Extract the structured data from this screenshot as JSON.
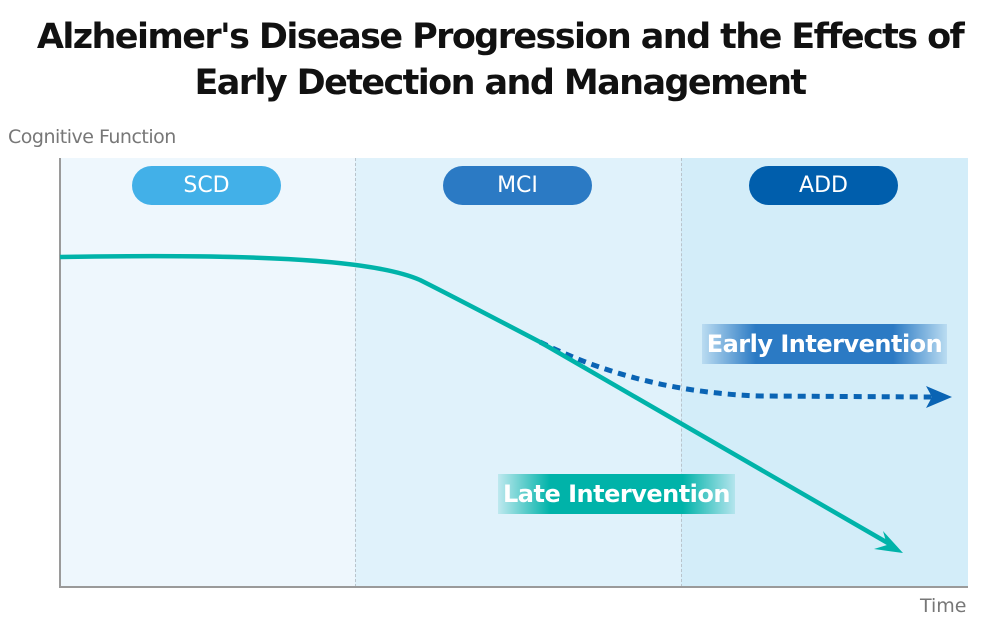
{
  "title": {
    "line1": "Alzheimer's Disease Progression and the Effects of",
    "line2": "Early Detection and Management"
  },
  "axes": {
    "y_label": "Cognitive Function",
    "x_label": "Time"
  },
  "stages": [
    {
      "label": "SCD",
      "color": "#42b0e8",
      "bg": "#eef7fd"
    },
    {
      "label": "MCI",
      "color": "#2b7ac4",
      "bg": "#e0f2fb"
    },
    {
      "label": "ADD",
      "color": "#005eac",
      "bg": "#d3edf9"
    }
  ],
  "curves": {
    "late": {
      "label": "Late Intervention",
      "color": "#00b3a9",
      "style": "solid"
    },
    "early": {
      "label": "Early Intervention",
      "color": "#0a64b4",
      "style": "dotted"
    }
  }
}
